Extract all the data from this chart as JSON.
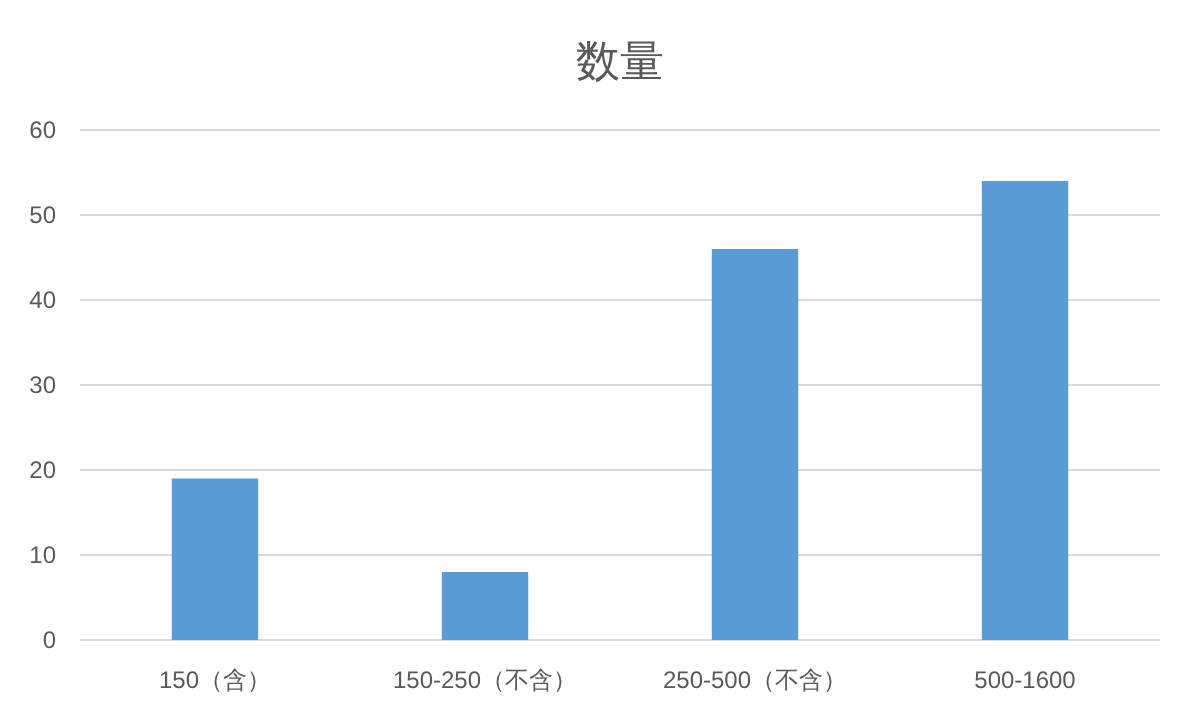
{
  "chart_data": {
    "type": "bar",
    "title": "数量",
    "categories": [
      "150（含）",
      "150-250（不含）",
      "250-500（不含）",
      "500-1600"
    ],
    "values": [
      19,
      8,
      46,
      54
    ],
    "color": "#5b9bd5",
    "ylim": [
      0,
      60
    ],
    "yticks": [
      0,
      10,
      20,
      30,
      40,
      50,
      60
    ],
    "grid": "y"
  }
}
